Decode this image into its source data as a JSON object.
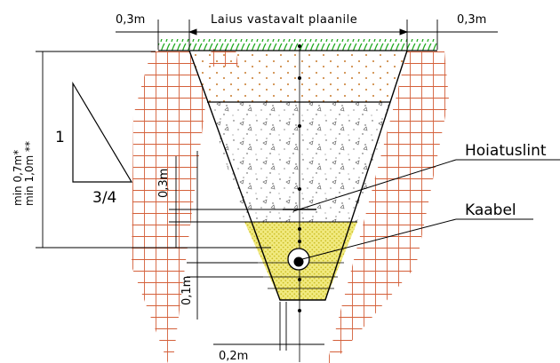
{
  "labels": {
    "side_left": "0,3m",
    "side_right": "0,3m",
    "top_width": "Laius vastavalt plaanile",
    "depth_line1": "min 0,7m*",
    "depth_line2": "min 1,0m **",
    "slope_vertical": "1",
    "slope_horizontal": "3/4",
    "warning_tape": "Hoiatuslint",
    "cable": "Kaabel",
    "tape_offset": "0,3m",
    "bedding": "0,1m",
    "bottom_width": "0,2m"
  },
  "colors": {
    "grass": "#22aa22",
    "soil_hatch": "#d4603a",
    "topsoil_dot": "#c87a2a",
    "sand": "#e6dc4a",
    "line": "#000000"
  }
}
